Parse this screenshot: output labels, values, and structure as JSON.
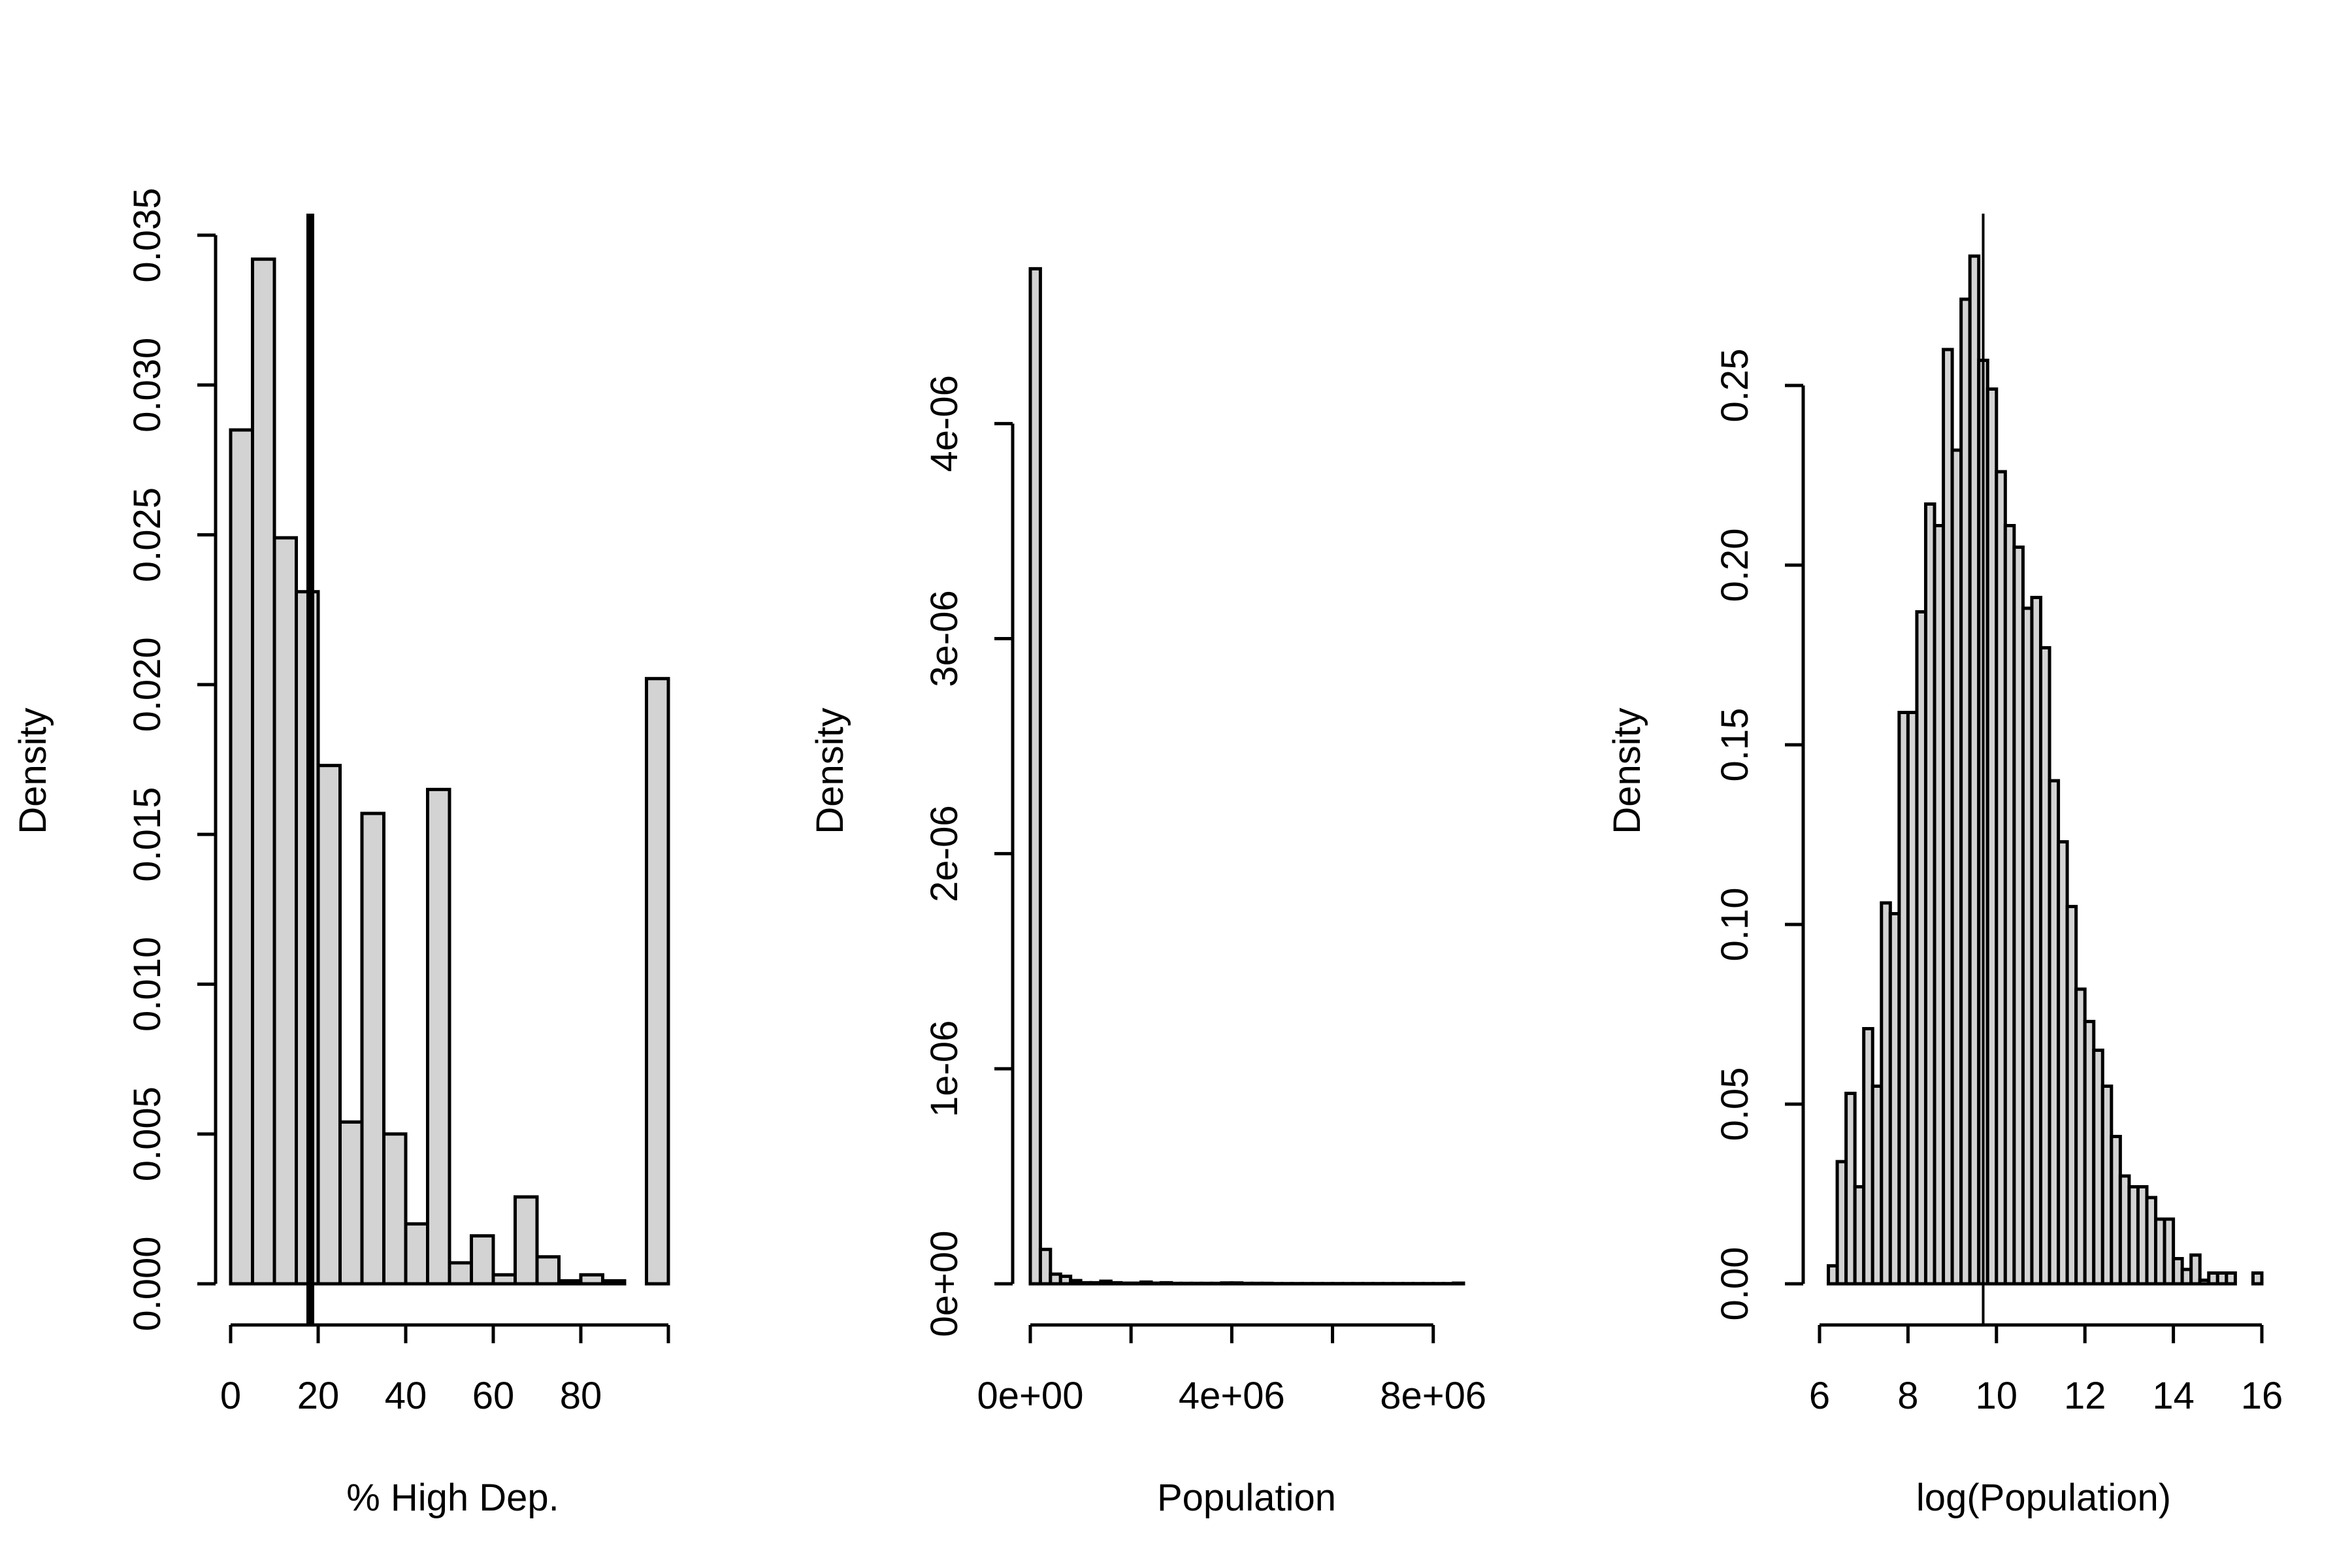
{
  "chart_data": [
    {
      "type": "bar",
      "xlabel": "% High Dep.",
      "ylabel": "Density",
      "xlim": [
        0,
        100
      ],
      "ylim": [
        0,
        0.035
      ],
      "xticks": [
        0,
        20,
        40,
        60,
        80
      ],
      "xtick_labels": [
        "0",
        "20",
        "40",
        "60",
        "80"
      ],
      "yticks": [
        0,
        0.005,
        0.01,
        0.015,
        0.02,
        0.025,
        0.03,
        0.035
      ],
      "ytick_labels": [
        "0.000",
        "0.005",
        "0.010",
        "0.015",
        "0.020",
        "0.025",
        "0.030",
        "0.035"
      ],
      "bin_edges": [
        0,
        5,
        10,
        15,
        20,
        25,
        30,
        35,
        40,
        45,
        50,
        55,
        60,
        65,
        70,
        75,
        80,
        85,
        90,
        95,
        100
      ],
      "values": [
        0.0285,
        0.0342,
        0.0249,
        0.0231,
        0.0173,
        0.0054,
        0.0157,
        0.005,
        0.002,
        0.0165,
        0.0007,
        0.0016,
        0.0003,
        0.0029,
        0.0009,
        0.0001,
        0.0003,
        0.0001,
        0.0,
        0.0202
      ],
      "reference_line_x": 18.2
    },
    {
      "type": "bar",
      "xlabel": "Population",
      "ylabel": "Density",
      "xlim": [
        0,
        8600000
      ],
      "ylim": [
        0,
        4.8e-06
      ],
      "xticks": [
        0,
        2000000,
        4000000,
        6000000,
        8000000
      ],
      "xtick_labels": [
        "0e+00",
        "",
        "4e+06",
        "",
        "8e+06"
      ],
      "yticks": [
        0,
        1e-06,
        2e-06,
        3e-06,
        4e-06
      ],
      "ytick_labels": [
        "0e+00",
        "1e-06",
        "2e-06",
        "3e-06",
        "4e-06"
      ],
      "bin_edges": [
        0,
        200000,
        400000,
        600000,
        800000,
        1000000,
        1200000,
        1400000,
        1600000,
        1800000,
        2000000,
        2200000,
        2400000,
        2600000,
        2800000,
        3000000,
        3200000,
        3400000,
        3600000,
        3800000,
        4000000,
        4200000,
        4400000,
        4600000,
        4800000,
        5000000,
        5200000,
        5400000,
        5600000,
        5800000,
        6000000,
        6200000,
        6400000,
        6600000,
        6800000,
        7000000,
        7200000,
        7400000,
        7600000,
        7800000,
        8000000,
        8200000,
        8400000,
        8600000
      ],
      "values": [
        4.72e-06,
        1.6e-07,
        4.5e-08,
        3.5e-08,
        1.5e-08,
        5e-09,
        5e-09,
        1.2e-08,
        5e-09,
        3e-09,
        3e-09,
        8e-09,
        3e-09,
        5e-09,
        2e-09,
        2e-09,
        2e-09,
        2e-09,
        2e-09,
        4e-09,
        4e-09,
        2e-09,
        2e-09,
        2e-09,
        1e-09,
        1e-09,
        1e-09,
        1e-09,
        1e-09,
        1e-09,
        1e-09,
        1e-09,
        1e-09,
        1e-09,
        1e-09,
        1e-09,
        1e-09,
        1e-09,
        1e-09,
        1e-09,
        1e-09,
        1e-09,
        3e-09
      ]
    },
    {
      "type": "bar",
      "xlabel": "log(Population)",
      "ylabel": "Density",
      "xlim": [
        6,
        16
      ],
      "ylim": [
        0,
        0.25
      ],
      "xticks": [
        6,
        8,
        10,
        12,
        14,
        16
      ],
      "xtick_labels": [
        "6",
        "8",
        "10",
        "12",
        "14",
        "16"
      ],
      "yticks": [
        0,
        0.05,
        0.1,
        0.15,
        0.2,
        0.25
      ],
      "ytick_labels": [
        "0.00",
        "0.05",
        "0.10",
        "0.15",
        "0.20",
        "0.25"
      ],
      "bin_edges": [
        6.2,
        6.4,
        6.6,
        6.8,
        7.0,
        7.2,
        7.4,
        7.6,
        7.8,
        8.0,
        8.2,
        8.4,
        8.6,
        8.8,
        9.0,
        9.2,
        9.4,
        9.6,
        9.8,
        10.0,
        10.2,
        10.4,
        10.6,
        10.8,
        11.0,
        11.2,
        11.4,
        11.6,
        11.8,
        12.0,
        12.2,
        12.4,
        12.6,
        12.8,
        13.0,
        13.2,
        13.4,
        13.6,
        13.8,
        14.0,
        14.2,
        14.4,
        14.6,
        14.8,
        15.0,
        15.2,
        15.4,
        15.6,
        15.8,
        16.0
      ],
      "values": [
        0.005,
        0.034,
        0.053,
        0.027,
        0.071,
        0.055,
        0.106,
        0.103,
        0.159,
        0.159,
        0.187,
        0.217,
        0.211,
        0.26,
        0.232,
        0.274,
        0.286,
        0.257,
        0.249,
        0.226,
        0.211,
        0.205,
        0.188,
        0.191,
        0.177,
        0.14,
        0.123,
        0.105,
        0.082,
        0.073,
        0.065,
        0.055,
        0.041,
        0.03,
        0.027,
        0.027,
        0.024,
        0.018,
        0.018,
        0.007,
        0.004,
        0.008,
        0.001,
        0.003,
        0.003,
        0.003,
        0.0,
        0.0,
        0.003
      ],
      "reference_line_x": 9.7
    }
  ]
}
